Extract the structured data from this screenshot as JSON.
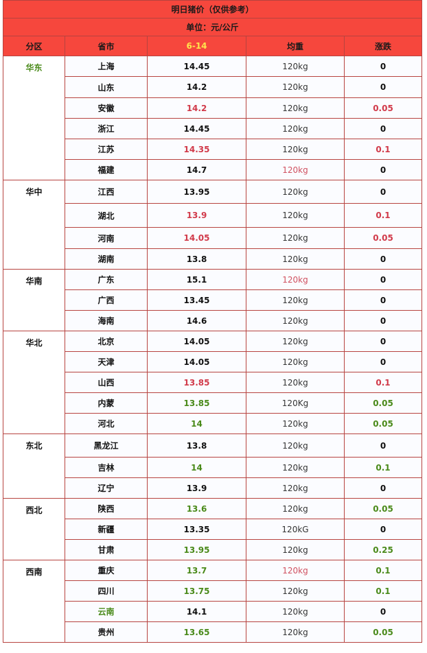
{
  "title": "明日猪价（仅供参考）",
  "unit": "单位：元/公斤",
  "headers": {
    "region": "分区",
    "province": "省市",
    "date": "6-14",
    "weight": "均重",
    "change": "涨跌"
  },
  "colors": {
    "header_bg": "#f6473d",
    "date_text": "#ffe44d",
    "red": "#d13a4a",
    "green": "#4a8a1a",
    "border": "#b7433f"
  },
  "regions": [
    {
      "name": "华东",
      "color": "green",
      "rows": [
        {
          "province": "上海",
          "price": "14.45",
          "price_color": "black",
          "weight": "120kg",
          "weight_color": "normal",
          "change": "0",
          "change_color": "black",
          "h": 30
        },
        {
          "province": "山东",
          "price": "14.2",
          "price_color": "black",
          "weight": "120kg",
          "weight_color": "normal",
          "change": "0",
          "change_color": "black",
          "h": 31
        },
        {
          "province": "安徽",
          "price": "14.2",
          "price_color": "red",
          "weight": "120kg",
          "weight_color": "normal",
          "change": "0.05",
          "change_color": "red",
          "h": 30
        },
        {
          "province": "浙江",
          "price": "14.45",
          "price_color": "black",
          "weight": "120kg",
          "weight_color": "normal",
          "change": "0",
          "change_color": "black",
          "h": 30
        },
        {
          "province": "江苏",
          "price": "14.35",
          "price_color": "red",
          "weight": "120kg",
          "weight_color": "normal",
          "change": "0.1",
          "change_color": "red",
          "h": 30
        },
        {
          "province": "福建",
          "price": "14.7",
          "price_color": "black",
          "weight": "120kg",
          "weight_color": "red",
          "change": "0",
          "change_color": "black",
          "h": 30
        }
      ]
    },
    {
      "name": "华中",
      "color": "black",
      "rows": [
        {
          "province": "江西",
          "price": "13.95",
          "price_color": "black",
          "weight": "120kg",
          "weight_color": "normal",
          "change": "0",
          "change_color": "black",
          "h": 34
        },
        {
          "province": "湖北",
          "price": "13.9",
          "price_color": "red",
          "weight": "120kg",
          "weight_color": "normal",
          "change": "0.1",
          "change_color": "red",
          "h": 35
        },
        {
          "province": "河南",
          "price": "14.05",
          "price_color": "red",
          "weight": "120kg",
          "weight_color": "normal",
          "change": "0.05",
          "change_color": "red",
          "h": 31
        },
        {
          "province": "湖南",
          "price": "13.8",
          "price_color": "black",
          "weight": "120kg",
          "weight_color": "normal",
          "change": "0",
          "change_color": "black",
          "h": 30
        }
      ]
    },
    {
      "name": "华南",
      "color": "black",
      "rows": [
        {
          "province": "广东",
          "price": "15.1",
          "price_color": "black",
          "weight": "120kg",
          "weight_color": "red",
          "change": "0",
          "change_color": "black",
          "h": 30
        },
        {
          "province": "广西",
          "price": "13.45",
          "price_color": "black",
          "weight": "120kg",
          "weight_color": "normal",
          "change": "0",
          "change_color": "black",
          "h": 30
        },
        {
          "province": "海南",
          "price": "14.6",
          "price_color": "black",
          "weight": "120kg",
          "weight_color": "normal",
          "change": "0",
          "change_color": "black",
          "h": 30
        }
      ]
    },
    {
      "name": "华北",
      "color": "black",
      "rows": [
        {
          "province": "北京",
          "price": "14.05",
          "price_color": "black",
          "weight": "120kg",
          "weight_color": "normal",
          "change": "0",
          "change_color": "black",
          "h": 30
        },
        {
          "province": "天津",
          "price": "14.05",
          "price_color": "black",
          "weight": "120kg",
          "weight_color": "normal",
          "change": "0",
          "change_color": "black",
          "h": 30
        },
        {
          "province": "山西",
          "price": "13.85",
          "price_color": "red",
          "weight": "120kg",
          "weight_color": "normal",
          "change": "0.1",
          "change_color": "red",
          "h": 30
        },
        {
          "province": "内蒙",
          "price": "13.85",
          "price_color": "green",
          "weight": "120Kg",
          "weight_color": "normal",
          "change": "0.05",
          "change_color": "green",
          "h": 30
        },
        {
          "province": "河北",
          "price": "14",
          "price_color": "green",
          "weight": "120kg",
          "weight_color": "normal",
          "change": "0.05",
          "change_color": "green",
          "h": 30
        }
      ]
    },
    {
      "name": "东北",
      "color": "black",
      "rows": [
        {
          "province": "黑龙江",
          "price": "13.8",
          "price_color": "black",
          "weight": "120kg",
          "weight_color": "normal",
          "change": "0",
          "change_color": "black",
          "h": 34
        },
        {
          "province": "吉林",
          "price": "14",
          "price_color": "green",
          "weight": "120kg",
          "weight_color": "normal",
          "change": "0.1",
          "change_color": "green",
          "h": 30
        },
        {
          "province": "辽宁",
          "price": "13.9",
          "price_color": "black",
          "weight": "120kg",
          "weight_color": "normal",
          "change": "0",
          "change_color": "black",
          "h": 30
        }
      ]
    },
    {
      "name": "西北",
      "color": "black",
      "rows": [
        {
          "province": "陕西",
          "price": "13.6",
          "price_color": "green",
          "weight": "120kg",
          "weight_color": "normal",
          "change": "0.05",
          "change_color": "green",
          "h": 30
        },
        {
          "province": "新疆",
          "price": "13.35",
          "price_color": "black",
          "weight": "120kG",
          "weight_color": "normal",
          "change": "0",
          "change_color": "black",
          "h": 30
        },
        {
          "province": "甘肃",
          "price": "13.95",
          "price_color": "green",
          "weight": "120kg",
          "weight_color": "normal",
          "change": "0.25",
          "change_color": "green",
          "h": 30
        }
      ]
    },
    {
      "name": "西南",
      "color": "black",
      "rows": [
        {
          "province": "重庆",
          "price": "13.7",
          "price_color": "green",
          "weight": "120kg",
          "weight_color": "red",
          "change": "0.1",
          "change_color": "green",
          "h": 30
        },
        {
          "province": "四川",
          "price": "13.75",
          "price_color": "green",
          "weight": "120kg",
          "weight_color": "normal",
          "change": "0.1",
          "change_color": "green",
          "h": 30
        },
        {
          "province": "云南",
          "province_color": "green",
          "price": "14.1",
          "price_color": "black",
          "weight": "120kg",
          "weight_color": "normal",
          "change": "0",
          "change_color": "black",
          "h": 30
        },
        {
          "province": "贵州",
          "price": "13.65",
          "price_color": "green",
          "weight": "120kg",
          "weight_color": "normal",
          "change": "0.05",
          "change_color": "green",
          "h": 30
        }
      ]
    }
  ]
}
